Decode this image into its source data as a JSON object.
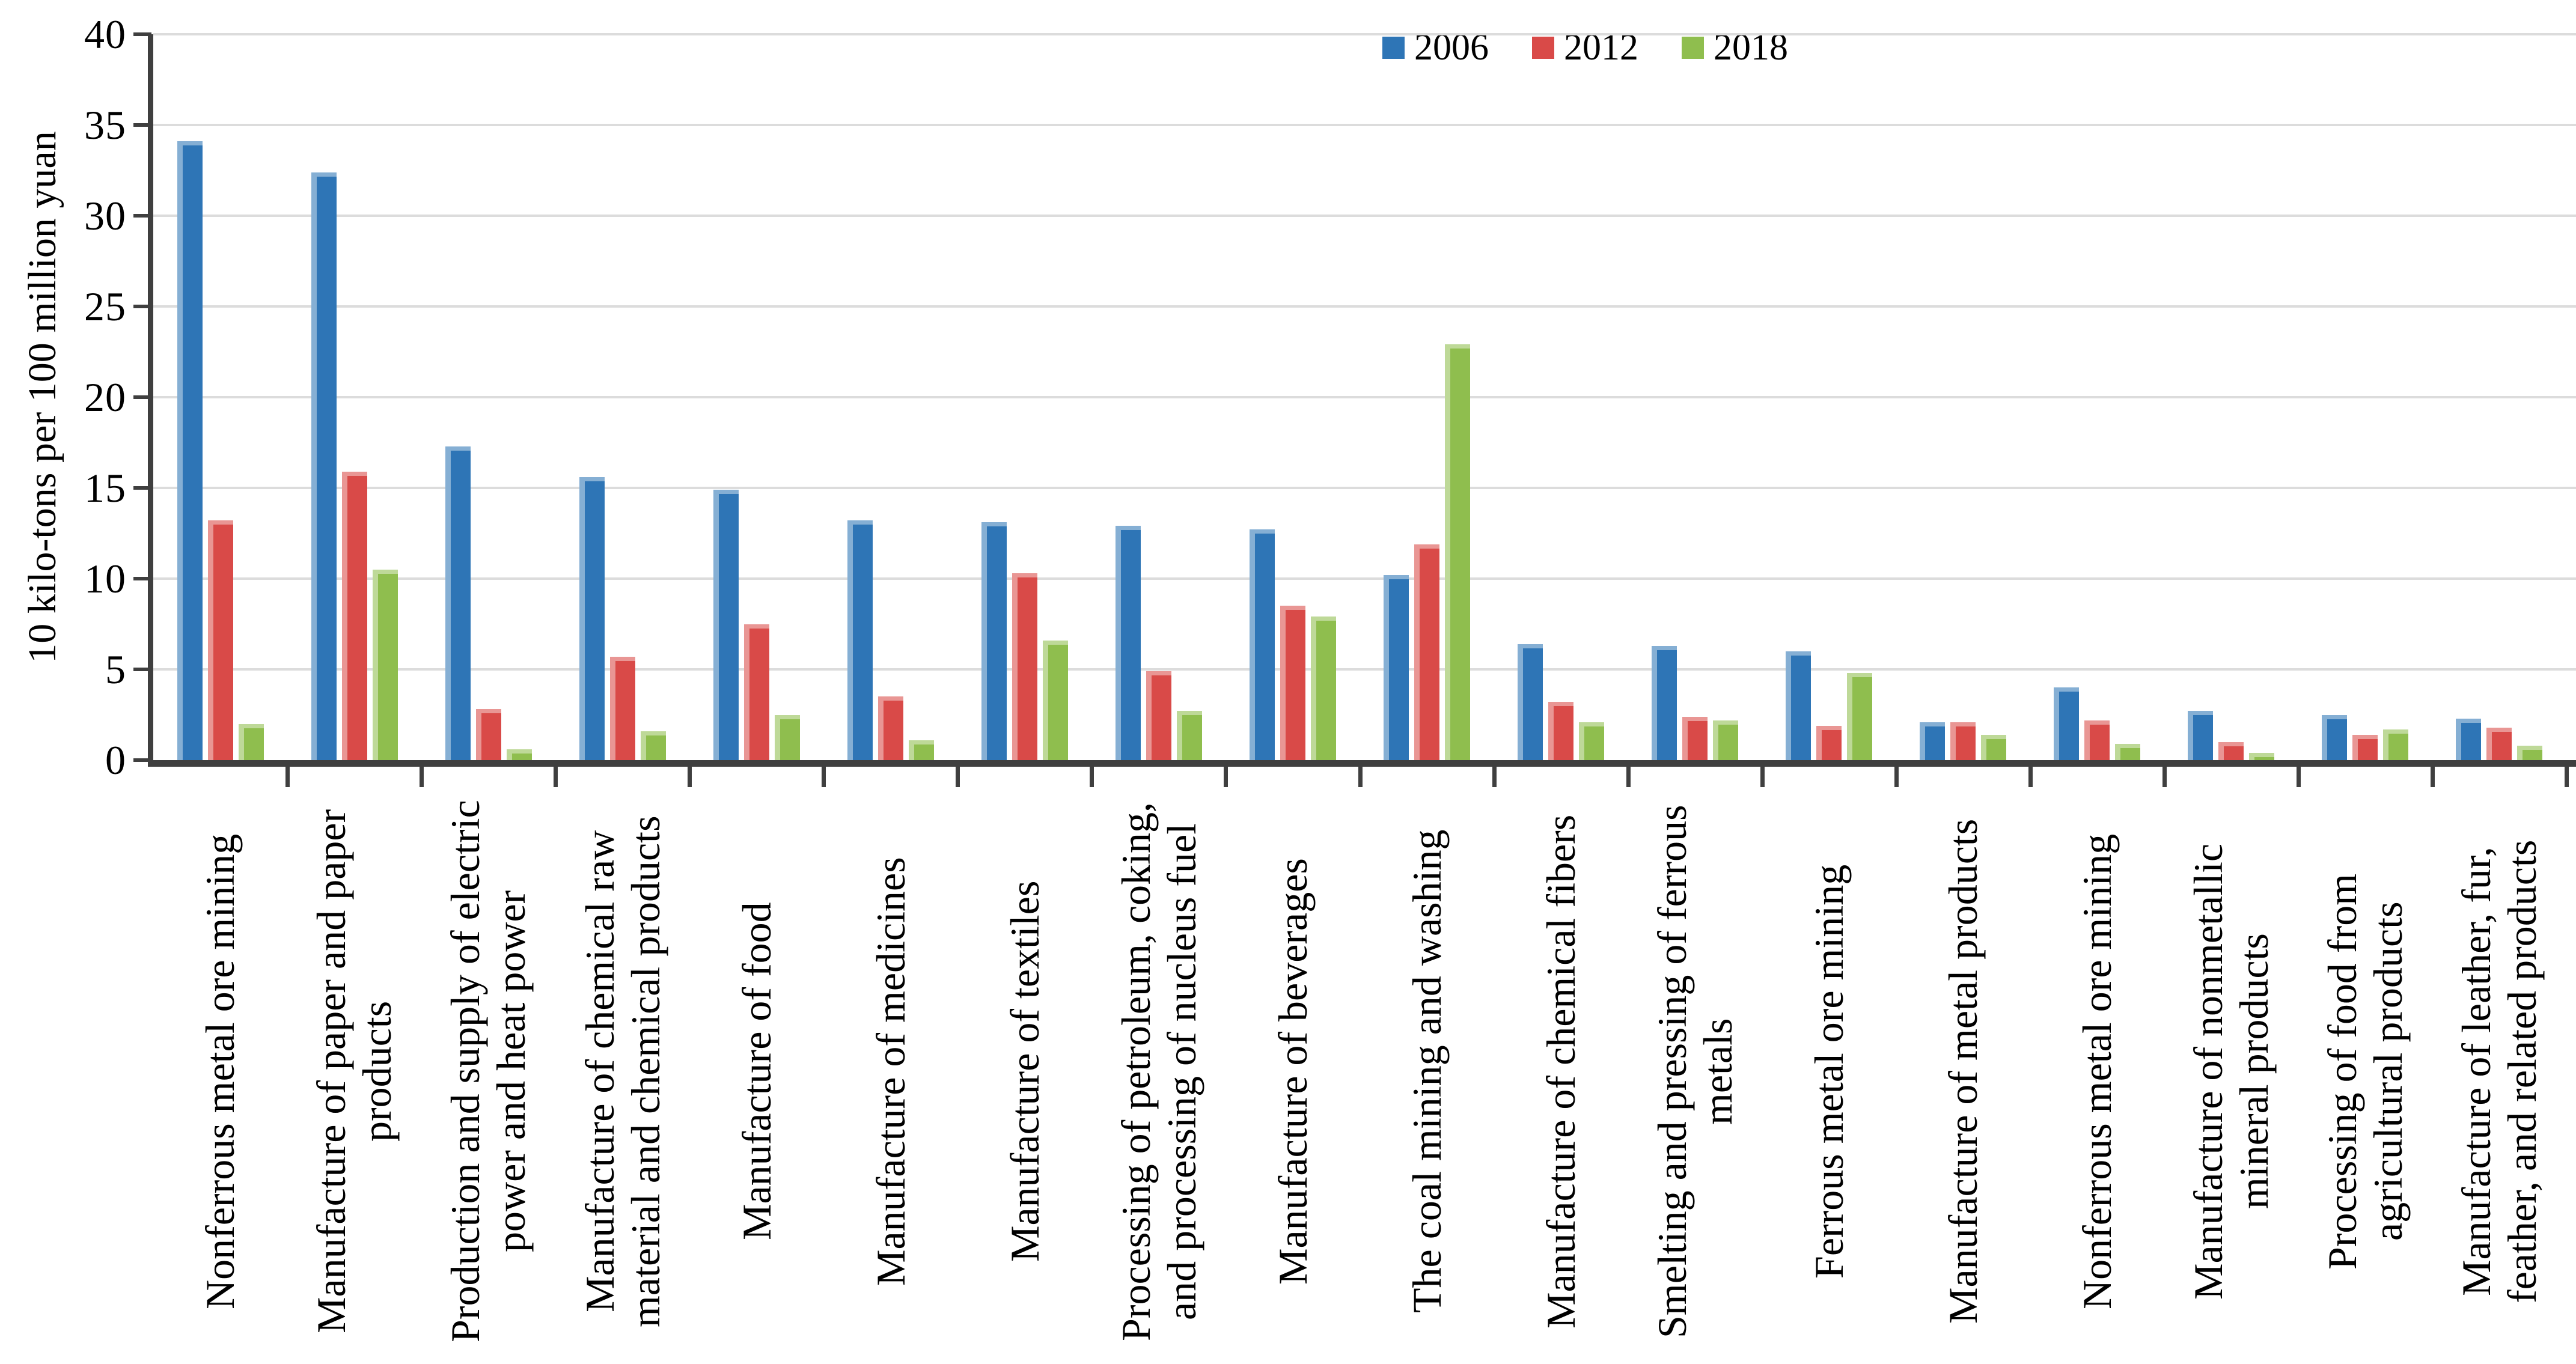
{
  "chart_data": {
    "type": "bar",
    "title": "",
    "ylabel": "10 kilo-tons per 100 million yuan",
    "xlabel": "",
    "ylim": [
      0,
      40
    ],
    "ytick_step": 5,
    "yticks": [
      0,
      5,
      10,
      15,
      20,
      25,
      30,
      35,
      40
    ],
    "grid": true,
    "legend_position": "top-center",
    "categories": [
      "Nonferrous metal ore mining",
      "Manufacture of paper and paper products",
      "Production and supply of electric power and heat power",
      "Manufacture of chemical raw material and chemical products",
      "Manufacture of food",
      "Manufacture of medicines",
      "Manufacture of textiles",
      "Processing of petroleum, coking, and processing of nucleus fuel",
      "Manufacture of beverages",
      "The coal mining and washing",
      "Manufacture of chemical fibers",
      "Smelting and pressing of ferrous metals",
      "Ferrous metal ore mining",
      "Manufacture of metal products",
      "Nonferrous metal ore mining",
      "Manufacture of nonmetallic mineral products",
      "Processing of food from agricultural products",
      "Manufacture of leather, fur, feather, and related products"
    ],
    "series": [
      {
        "name": "2006",
        "color": "#2e75b6",
        "values": [
          34.1,
          32.4,
          17.3,
          15.6,
          14.9,
          13.2,
          13.1,
          12.9,
          12.7,
          10.2,
          6.4,
          6.3,
          6.0,
          2.1,
          4.0,
          2.7,
          2.5,
          2.3
        ]
      },
      {
        "name": "2012",
        "color": "#d94a48",
        "values": [
          13.2,
          15.9,
          2.8,
          5.7,
          7.5,
          3.5,
          10.3,
          4.9,
          8.5,
          11.9,
          3.2,
          2.4,
          1.9,
          2.1,
          2.2,
          1.0,
          1.4,
          1.8
        ]
      },
      {
        "name": "2018",
        "color": "#8fbe4e",
        "values": [
          2.0,
          10.5,
          0.6,
          1.6,
          2.5,
          1.1,
          6.6,
          2.7,
          7.9,
          22.9,
          2.1,
          2.2,
          4.8,
          1.4,
          0.9,
          0.4,
          1.7,
          0.8
        ]
      }
    ],
    "colors": {
      "gridline": "#dcdcdc",
      "axis": "#3f3f3f",
      "text": "#000000",
      "background": "#ffffff"
    }
  }
}
